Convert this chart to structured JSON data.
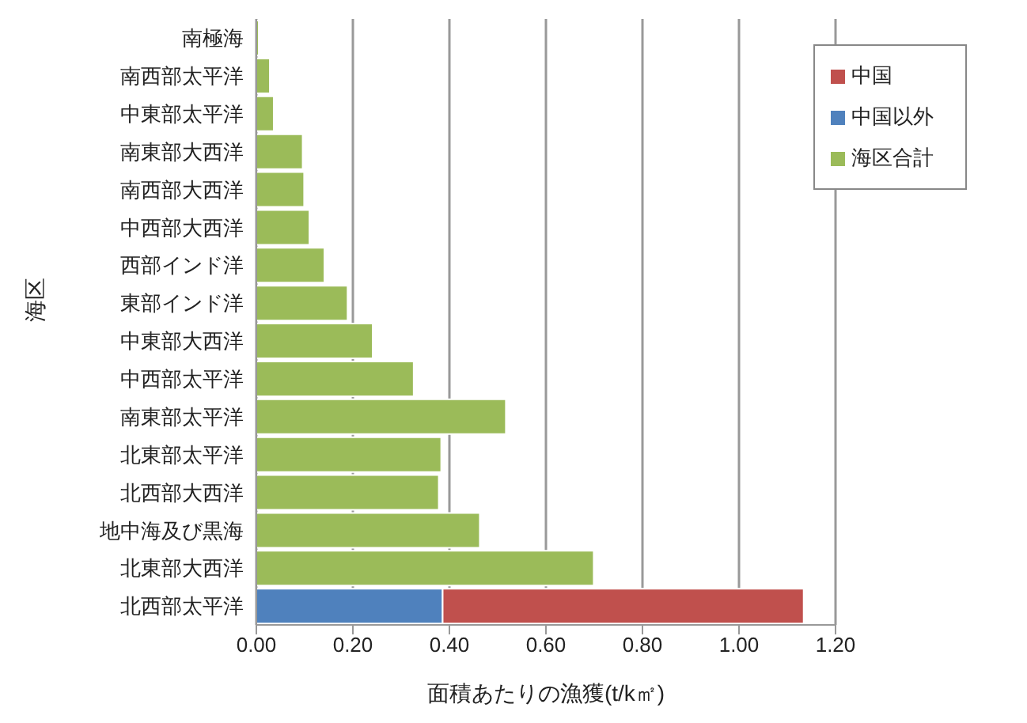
{
  "chart_data": {
    "type": "bar",
    "orientation": "horizontal",
    "stacked": true,
    "xlabel": "面積あたりの漁獲(t/k㎡)",
    "ylabel": "海区",
    "categories": [
      "南極海",
      "南西部太平洋",
      "中東部太平洋",
      "南東部大西洋",
      "南西部大西洋",
      "中西部大西洋",
      "西部インド洋",
      "東部インド洋",
      "中東部大西洋",
      "中西部太平洋",
      "南東部太平洋",
      "北東部太平洋",
      "北西部大西洋",
      "地中海及び黒海",
      "北東部大西洋",
      "北西部太平洋"
    ],
    "series": [
      {
        "name": "中国以外",
        "color": "#4f81bd",
        "values": [
          null,
          null,
          null,
          null,
          null,
          null,
          null,
          null,
          null,
          null,
          null,
          null,
          null,
          null,
          null,
          0.386
        ]
      },
      {
        "name": "中国",
        "color": "#c0504d",
        "values": [
          null,
          null,
          null,
          null,
          null,
          null,
          null,
          null,
          null,
          null,
          null,
          null,
          null,
          null,
          null,
          0.748
        ]
      },
      {
        "name": "海区合計",
        "color": "#9bbb59",
        "values": [
          0.005,
          0.028,
          0.036,
          0.096,
          0.099,
          0.11,
          0.141,
          0.189,
          0.241,
          0.326,
          0.517,
          0.383,
          0.378,
          0.463,
          0.699,
          null
        ]
      }
    ],
    "xlim": [
      0,
      1.2
    ],
    "xticks": [
      {
        "value": 0,
        "label": "0.00"
      },
      {
        "value": 0.2,
        "label": "0.20"
      },
      {
        "value": 0.4,
        "label": "0.40"
      },
      {
        "value": 0.6,
        "label": "0.60"
      },
      {
        "value": 0.8,
        "label": "0.80"
      },
      {
        "value": 1,
        "label": "1.00"
      },
      {
        "value": 1.2,
        "label": "1.20"
      }
    ],
    "grid": "x",
    "legend": "top right"
  }
}
